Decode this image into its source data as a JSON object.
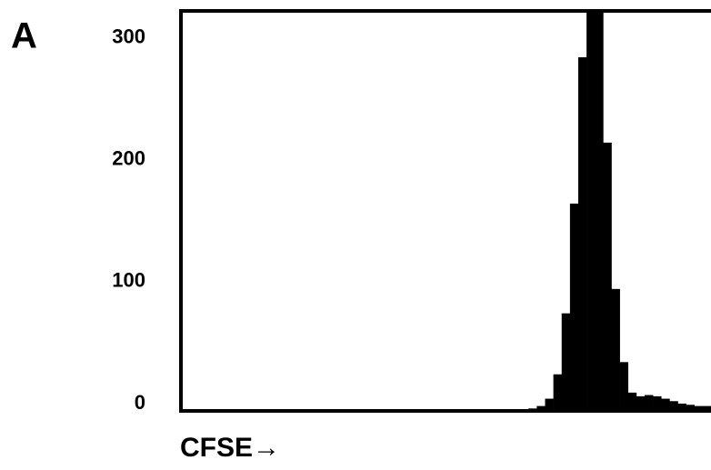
{
  "panel_label": "A",
  "chart_data": {
    "type": "histogram",
    "xlabel": "CFSE→",
    "bins": [
      0,
      4,
      8,
      12,
      16,
      20,
      24,
      28,
      32,
      36,
      40,
      44,
      48,
      52,
      56,
      60,
      64,
      68,
      72,
      76,
      80,
      84,
      88,
      92,
      96,
      100,
      104,
      108,
      112,
      116,
      120,
      124,
      128,
      132,
      136,
      140,
      144,
      148,
      152,
      156,
      160,
      164,
      168,
      172,
      176,
      180,
      184,
      188,
      192,
      196,
      200,
      204,
      208,
      212,
      216,
      220,
      224,
      228,
      232,
      236,
      240,
      244,
      248,
      252,
      256
    ],
    "counts": [
      0,
      0,
      0,
      0,
      0,
      0,
      0,
      0,
      0,
      0,
      0,
      0,
      0,
      0,
      0,
      0,
      0,
      0,
      0,
      0,
      0,
      0,
      0,
      0,
      0,
      1,
      0,
      0,
      0,
      0,
      0,
      0,
      0,
      0,
      1,
      0,
      1,
      1,
      1,
      1,
      1,
      1,
      2,
      4,
      10,
      30,
      80,
      170,
      290,
      330,
      330,
      220,
      100,
      40,
      15,
      12,
      13,
      12,
      10,
      8,
      6,
      5,
      4,
      4
    ],
    "color": "#000000",
    "xlim": [
      0,
      256
    ],
    "ylim": [
      0,
      328
    ],
    "yticks": [
      0,
      100,
      200,
      300
    ]
  }
}
